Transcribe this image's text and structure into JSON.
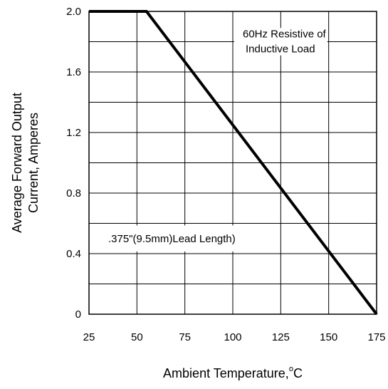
{
  "chart_data": {
    "type": "line",
    "xlabel": "Ambient Temperature,",
    "xlabel_unit": "C",
    "xlabel_degree": "o",
    "ylabel_line1": "Average Forward Output",
    "ylabel_line2": "Current, Amperes",
    "xlim": [
      25,
      175
    ],
    "ylim": [
      0,
      2.0
    ],
    "x_ticks": [
      25,
      50,
      75,
      100,
      125,
      150,
      175
    ],
    "x_tick_labels": [
      "25",
      "50",
      "75",
      "100",
      "125",
      "150",
      "175"
    ],
    "y_ticks": [
      0,
      0.4,
      0.8,
      1.2,
      1.6,
      2.0
    ],
    "y_tick_labels": [
      "0",
      "0.4",
      "0.8",
      "1.2",
      "1.6",
      "2.0"
    ],
    "y_grid": [
      0.2,
      0.4,
      0.6,
      0.8,
      1.0,
      1.2,
      1.4,
      1.6,
      1.8
    ],
    "grid": true,
    "series": [
      {
        "x": [
          25,
          55,
          175
        ],
        "y": [
          2.0,
          2.0,
          0
        ]
      }
    ],
    "annotations": {
      "load_line1": "60Hz Resistive of",
      "load_line2": "Inductive Load",
      "lead_length": ".375\"(9.5mm)Lead Length)"
    }
  }
}
